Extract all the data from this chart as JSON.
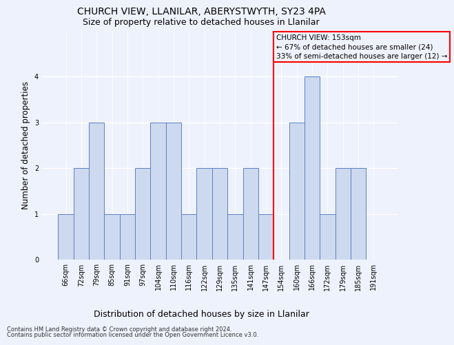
{
  "title": "CHURCH VIEW, LLANILAR, ABERYSTWYTH, SY23 4PA",
  "subtitle": "Size of property relative to detached houses in Llanilar",
  "xlabel": "Distribution of detached houses by size in Llanilar",
  "ylabel": "Number of detached properties",
  "categories": [
    "66sqm",
    "72sqm",
    "79sqm",
    "85sqm",
    "91sqm",
    "97sqm",
    "104sqm",
    "110sqm",
    "116sqm",
    "122sqm",
    "129sqm",
    "135sqm",
    "141sqm",
    "147sqm",
    "154sqm",
    "160sqm",
    "166sqm",
    "172sqm",
    "179sqm",
    "185sqm",
    "191sqm"
  ],
  "values": [
    1,
    2,
    3,
    1,
    1,
    2,
    3,
    3,
    1,
    2,
    2,
    1,
    2,
    1,
    0,
    3,
    4,
    1,
    2,
    2,
    0
  ],
  "bar_color": "#cdd9ee",
  "bar_edge_color": "#5b7fc4",
  "reference_line_index": 14,
  "annotation_line1": "CHURCH VIEW: 153sqm",
  "annotation_line2": "← 67% of detached houses are smaller (24)",
  "annotation_line3": "33% of semi-detached houses are larger (12) →",
  "ylim": [
    0,
    5
  ],
  "yticks": [
    0,
    1,
    2,
    3,
    4
  ],
  "footer_line1": "Contains HM Land Registry data © Crown copyright and database right 2024.",
  "footer_line2": "Contains public sector information licensed under the Open Government Licence v3.0.",
  "background_color": "#eef2fc",
  "grid_color": "#ffffff",
  "title_fontsize": 10,
  "subtitle_fontsize": 9,
  "tick_fontsize": 7,
  "ylabel_fontsize": 8.5,
  "xlabel_fontsize": 9,
  "footer_fontsize": 6,
  "annot_fontsize": 7.5
}
